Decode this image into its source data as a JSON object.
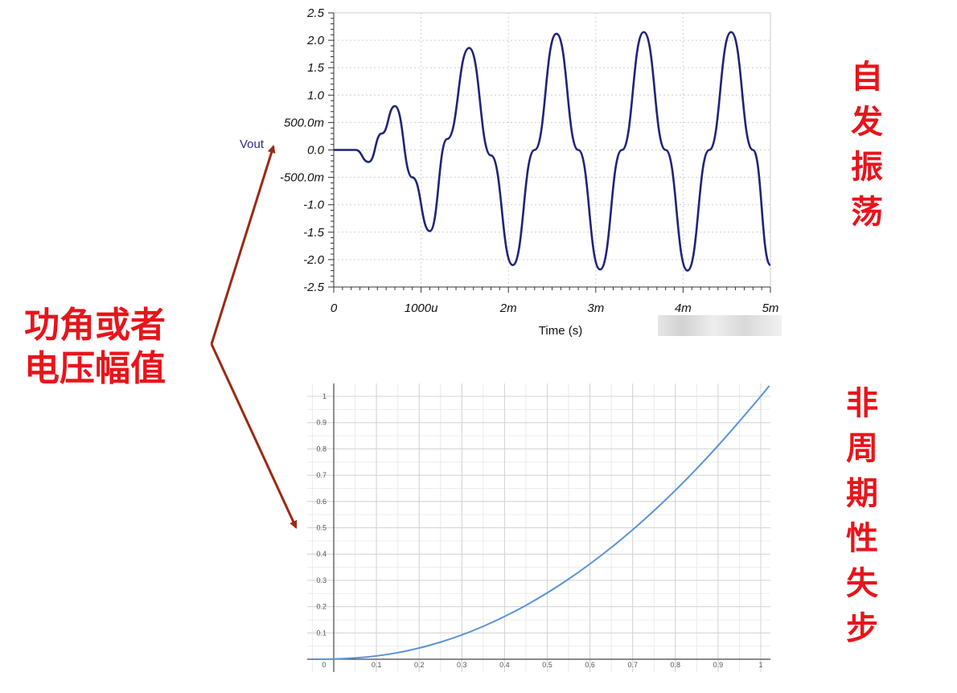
{
  "labels": {
    "left": [
      "功角或者",
      "电压幅值"
    ],
    "top_right": [
      "自",
      "发",
      "振",
      "荡"
    ],
    "bottom_right": [
      "非",
      "周",
      "期",
      "性",
      "失",
      "步"
    ]
  },
  "colors": {
    "label_red": "#e8141b",
    "arrow": "#9a2a12",
    "top_trace": "#1f237a",
    "bottom_curve": "#5b93d6"
  },
  "chart_data": [
    {
      "type": "line",
      "name": "self-oscillation",
      "title": "",
      "xlabel": "Time (s)",
      "ylabel": "Vout",
      "xlim": [
        0,
        0.005
      ],
      "ylim": [
        -2.5,
        2.5
      ],
      "x_tick_labels": [
        "0",
        "1000u",
        "2m",
        "3m",
        "4m",
        "5m"
      ],
      "y_tick_labels": [
        "2.5",
        "2.0",
        "1.5",
        "1.0",
        "500.0m",
        "0.0",
        "-500.0m",
        "-1.0",
        "-1.5",
        "-2.0",
        "-2.5"
      ],
      "grid": true,
      "series": [
        {
          "x": [
            0,
            0.00025,
            0.0004,
            0.00055,
            0.0007,
            0.0009,
            0.0011,
            0.0013,
            0.00155,
            0.0018,
            0.00205,
            0.0023,
            0.00255,
            0.0028,
            0.00305,
            0.0033,
            0.00355,
            0.0038,
            0.00405,
            0.0043,
            0.00455,
            0.0048,
            0.005
          ],
          "y": [
            0,
            0,
            -0.22,
            0.3,
            0.8,
            -0.5,
            -1.48,
            0.2,
            1.86,
            -0.1,
            -2.1,
            0.0,
            2.12,
            0.0,
            -2.18,
            0.0,
            2.15,
            0.0,
            -2.2,
            0.0,
            2.15,
            0.0,
            -2.1
          ]
        }
      ]
    },
    {
      "type": "line",
      "name": "aperiodic-instability",
      "title": "",
      "xlabel": "",
      "ylabel": "",
      "xlim": [
        -0.05,
        1.02
      ],
      "ylim": [
        -0.03,
        1.05
      ],
      "x_tick_labels": [
        "0",
        "0.1",
        "0.2",
        "0.3",
        "0.4",
        "0.5",
        "0.6",
        "0.7",
        "0.8",
        "0.9",
        "1"
      ],
      "y_tick_labels": [
        "0.1",
        "0.2",
        "0.3",
        "0.4",
        "0.5",
        "0.6",
        "0.7",
        "0.8",
        "0.9",
        "1"
      ],
      "grid": true,
      "series": [
        {
          "x": [
            -0.05,
            0,
            0.1,
            0.2,
            0.3,
            0.4,
            0.5,
            0.6,
            0.7,
            0.8,
            0.9,
            1,
            1.02
          ],
          "y": [
            0,
            0,
            0.01,
            0.04,
            0.09,
            0.16,
            0.25,
            0.36,
            0.49,
            0.64,
            0.81,
            1,
            1.04
          ]
        }
      ]
    }
  ]
}
